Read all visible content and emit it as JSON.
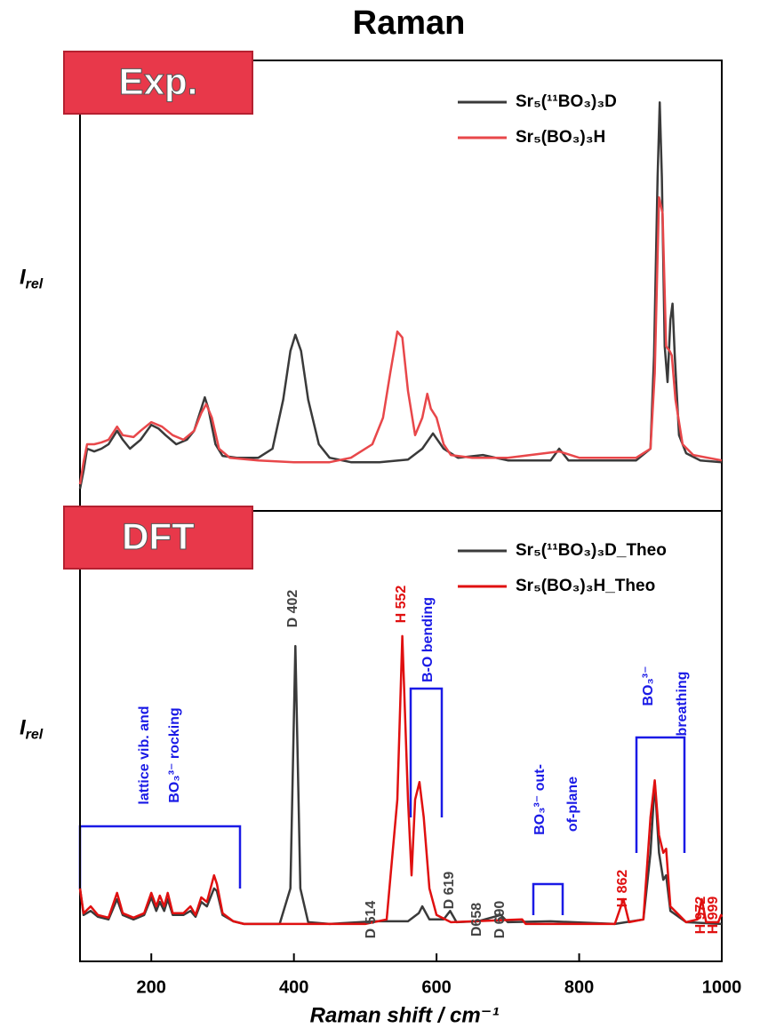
{
  "chart_data": [
    {
      "type": "line",
      "title": "Raman",
      "badge": "Exp.",
      "y_label": "I",
      "y_label_sub": "rel",
      "xlim": [
        100,
        1000
      ],
      "ylim": [
        0,
        100
      ],
      "series": [
        {
          "name": "Sr₅(¹¹BO₃)₃D",
          "color": "#3a3a3a",
          "x": [
            100,
            105,
            110,
            120,
            130,
            140,
            152,
            160,
            170,
            185,
            200,
            210,
            220,
            235,
            250,
            260,
            270,
            275,
            280,
            290,
            300,
            320,
            350,
            370,
            385,
            395,
            402,
            410,
            420,
            435,
            450,
            480,
            520,
            560,
            580,
            595,
            610,
            630,
            665,
            700,
            760,
            772,
            785,
            850,
            880,
            900,
            905,
            910,
            913,
            916,
            920,
            924,
            928,
            931,
            934,
            940,
            950,
            970,
            1000
          ],
          "values": [
            4.9,
            8.9,
            13.8,
            13.2,
            13.8,
            14.8,
            17.8,
            15.8,
            13.8,
            15.8,
            19.1,
            18.3,
            16.8,
            14.8,
            15.8,
            17.8,
            22.7,
            25.2,
            22.7,
            14.8,
            12.2,
            11.8,
            11.8,
            13.8,
            24.7,
            35.5,
            39.1,
            35.5,
            24.7,
            14.8,
            11.8,
            10.8,
            10.8,
            11.4,
            13.8,
            17.2,
            13.8,
            11.8,
            12.4,
            11.2,
            11.2,
            13.8,
            11.2,
            11.2,
            11.2,
            13.8,
            34.5,
            74.0,
            90.7,
            74.0,
            36.5,
            28.6,
            42.4,
            46.0,
            34.5,
            16.8,
            12.8,
            11.2,
            10.8
          ]
        },
        {
          "name": "Sr₅(BO₃)₃H",
          "color": "#e8474a",
          "x": [
            100,
            105,
            110,
            120,
            130,
            140,
            152,
            160,
            175,
            185,
            200,
            215,
            230,
            245,
            260,
            270,
            277,
            285,
            295,
            310,
            350,
            400,
            450,
            480,
            510,
            525,
            535,
            545,
            552,
            560,
            570,
            580,
            587,
            592,
            600,
            610,
            620,
            650,
            700,
            772,
            800,
            880,
            900,
            906,
            912,
            917,
            922,
            927,
            930,
            935,
            945,
            960,
            1000
          ],
          "values": [
            5.9,
            10.8,
            14.8,
            14.8,
            15.2,
            15.8,
            18.7,
            16.8,
            16.4,
            17.8,
            19.7,
            18.7,
            16.8,
            15.8,
            17.8,
            21.7,
            23.7,
            20.7,
            13.8,
            11.8,
            11.2,
            10.8,
            10.8,
            11.8,
            14.8,
            20.7,
            30.6,
            39.8,
            38.5,
            26.6,
            16.8,
            20.7,
            26.0,
            22.7,
            20.7,
            14.8,
            12.4,
            11.8,
            11.8,
            13.2,
            11.8,
            11.8,
            13.8,
            30.6,
            69.6,
            66.1,
            36.5,
            35.5,
            34.5,
            24.7,
            14.8,
            12.4,
            11.2
          ]
        }
      ]
    },
    {
      "type": "line",
      "badge": "DFT",
      "y_label": "I",
      "y_label_sub": "rel",
      "x_label": "Raman shift / cm⁻¹",
      "xlim": [
        100,
        1000
      ],
      "ylim": [
        0,
        100
      ],
      "xticks": [
        200,
        400,
        600,
        800,
        1000
      ],
      "series": [
        {
          "name": "Sr₅(¹¹BO₃)₃D_Theo",
          "color": "#3a3a3a",
          "x": [
            100,
            105,
            115,
            125,
            140,
            152,
            160,
            175,
            190,
            200,
            207,
            212,
            218,
            223,
            230,
            245,
            255,
            262,
            270,
            278,
            288,
            292,
            300,
            315,
            330,
            380,
            395,
            402,
            409,
            420,
            450,
            514,
            560,
            575,
            580,
            590,
            610,
            619,
            628,
            658,
            690,
            700,
            760,
            850,
            890,
            900,
            906,
            912,
            918,
            922,
            928,
            950,
            1000
          ],
          "values": [
            16.2,
            10.3,
            11.2,
            9.9,
            9.3,
            13.8,
            10.3,
            9.3,
            10.3,
            14.2,
            11.2,
            13.2,
            11.2,
            13.8,
            10.3,
            10.3,
            11.2,
            9.9,
            13.2,
            12.2,
            16.2,
            15.6,
            10.3,
            8.9,
            8.3,
            8.3,
            16.2,
            70.0,
            16.2,
            8.7,
            8.3,
            8.9,
            8.9,
            10.7,
            12.2,
            9.3,
            9.3,
            11.2,
            8.7,
            8.9,
            10.3,
            8.7,
            8.9,
            8.3,
            9.3,
            24.1,
            39.8,
            24.1,
            18.1,
            19.1,
            11.2,
            8.7,
            8.3
          ]
        },
        {
          "name": "Sr₅(BO₃)₃H_Theo",
          "color": "#e01010",
          "x": [
            100,
            105,
            115,
            125,
            140,
            152,
            160,
            175,
            190,
            200,
            207,
            212,
            218,
            223,
            230,
            245,
            255,
            262,
            270,
            278,
            288,
            292,
            300,
            315,
            330,
            500,
            530,
            545,
            552,
            560,
            565,
            570,
            576,
            582,
            590,
            600,
            620,
            720,
            725,
            850,
            862,
            870,
            890,
            900,
            906,
            912,
            918,
            922,
            928,
            950,
            966,
            972,
            978,
            995,
            999,
            1000
          ],
          "values": [
            16.2,
            10.7,
            12.2,
            10.3,
            9.7,
            15.2,
            10.7,
            9.7,
            10.7,
            15.2,
            12.2,
            14.6,
            12.2,
            15.2,
            10.7,
            10.7,
            12.2,
            10.3,
            14.2,
            13.2,
            19.1,
            17.2,
            10.7,
            8.9,
            8.3,
            8.3,
            9.3,
            35.9,
            72.2,
            35.9,
            19.1,
            35.9,
            39.8,
            32.0,
            16.2,
            10.3,
            8.7,
            9.3,
            8.3,
            8.3,
            13.8,
            8.7,
            9.3,
            32.0,
            40.2,
            28.0,
            24.1,
            25.0,
            12.2,
            8.7,
            9.3,
            13.8,
            8.7,
            8.7,
            10.3,
            9.9
          ]
        }
      ],
      "annotations": [
        {
          "text": "D 402",
          "color": "#444444"
        },
        {
          "text": "H 552",
          "color": "#e01010"
        },
        {
          "text": "B-O bending",
          "color": "#1a1ae6"
        },
        {
          "text": "D 514",
          "color": "#444444"
        },
        {
          "text": "D 619",
          "color": "#444444"
        },
        {
          "text": "D658",
          "color": "#444444"
        },
        {
          "text": "D 690",
          "color": "#444444"
        },
        {
          "text": "BO₃³⁻ out-",
          "color": "#1a1ae6"
        },
        {
          "text": "of-plane",
          "color": "#1a1ae6"
        },
        {
          "text": "H 862",
          "color": "#e01010"
        },
        {
          "text": "H 972",
          "color": "#e01010"
        },
        {
          "text": "H 999",
          "color": "#e01010"
        },
        {
          "text": "lattice vib. and",
          "color": "#1a1ae6"
        },
        {
          "text": "BO₃³⁻ rocking",
          "color": "#1a1ae6"
        },
        {
          "text": "BO₃³⁻",
          "color": "#1a1ae6"
        },
        {
          "text": "breathing",
          "color": "#1a1ae6"
        }
      ]
    }
  ]
}
